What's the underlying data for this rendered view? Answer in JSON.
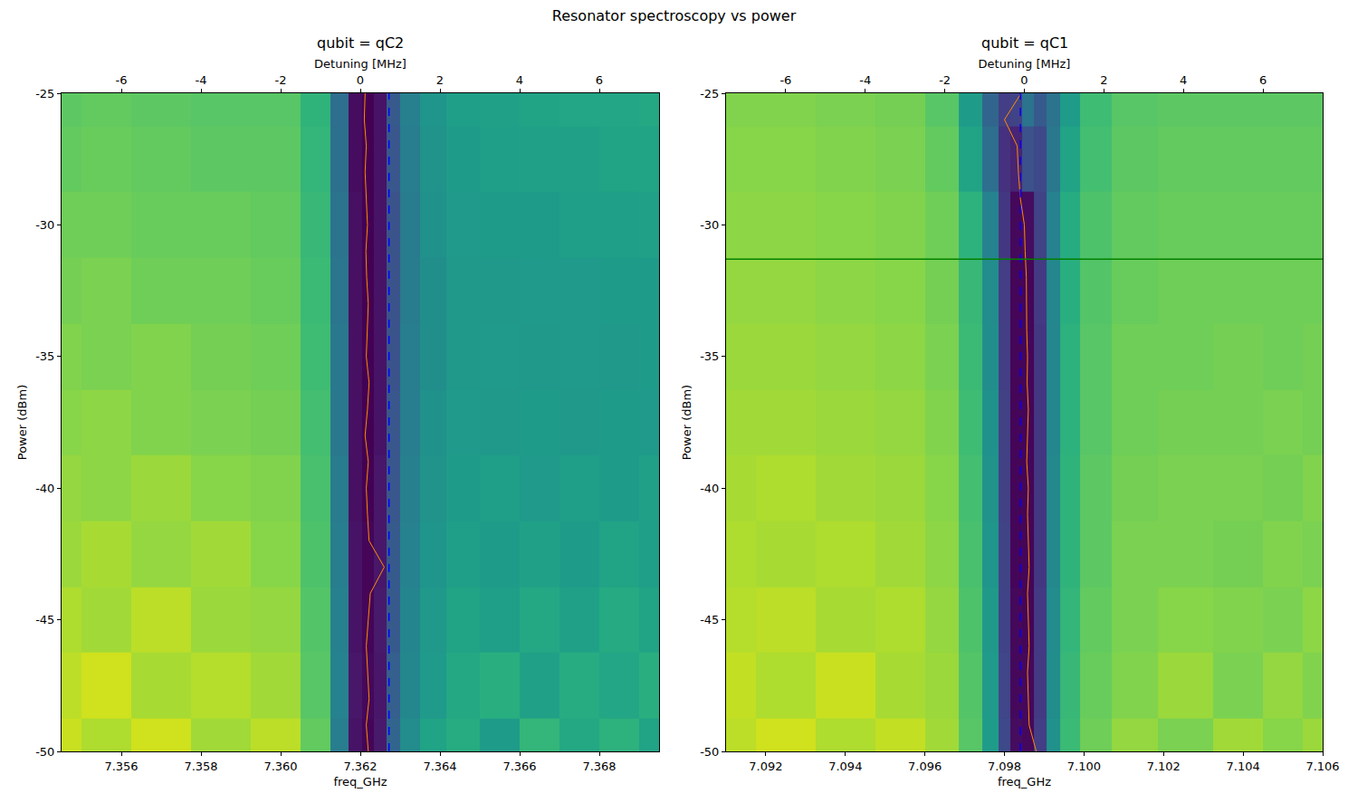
{
  "title": "Resonator spectroscopy vs power",
  "chart_data": [
    {
      "type": "heatmap",
      "title": "qubit = qC2",
      "xlabel": "freq_GHz",
      "ylabel": "Power (dBm)",
      "x2label": "Detuning [MHz]",
      "xlim": [
        7.3545,
        7.3695
      ],
      "ylim": [
        -50,
        -25
      ],
      "x2lim": [
        -7.5,
        7.5
      ],
      "zlim": [
        0,
        1
      ],
      "xticks": [
        7.356,
        7.358,
        {
          "value": 7.36,
          "label": "7.360"
        },
        7.362,
        7.364,
        7.366,
        7.368
      ],
      "yticks": [
        -50,
        -45,
        -40,
        -35,
        -30,
        -25
      ],
      "x2ticks": [
        -6,
        -4,
        -2,
        0,
        2,
        4,
        6
      ],
      "x": [
        7.3545,
        7.3555,
        7.357,
        7.3585,
        7.36,
        7.361,
        7.3615,
        7.3619,
        7.3622,
        7.3625,
        7.3628,
        7.3632,
        7.3638,
        7.3645,
        7.3655,
        7.3665,
        7.3675,
        7.3685,
        7.3695
      ],
      "y": [
        -50,
        -47.5,
        -45,
        -42.5,
        -40,
        -37.5,
        -35,
        -32.5,
        -30,
        -27.5,
        -25
      ],
      "z": [
        [
          0.92,
          0.88,
          0.93,
          0.86,
          0.9,
          0.76,
          0.42,
          0.05,
          0.01,
          0.07,
          0.32,
          0.48,
          0.58,
          0.62,
          0.55,
          0.66,
          0.6,
          0.64,
          0.58
        ],
        [
          0.9,
          0.93,
          0.87,
          0.89,
          0.86,
          0.74,
          0.44,
          0.06,
          0.02,
          0.06,
          0.3,
          0.46,
          0.54,
          0.6,
          0.63,
          0.57,
          0.62,
          0.59,
          0.63
        ],
        [
          0.88,
          0.86,
          0.9,
          0.85,
          0.84,
          0.73,
          0.43,
          0.05,
          0.01,
          0.07,
          0.28,
          0.45,
          0.53,
          0.58,
          0.56,
          0.6,
          0.57,
          0.61,
          0.58
        ],
        [
          0.85,
          0.87,
          0.84,
          0.86,
          0.82,
          0.72,
          0.42,
          0.05,
          0.01,
          0.06,
          0.28,
          0.44,
          0.52,
          0.56,
          0.55,
          0.57,
          0.55,
          0.58,
          0.56
        ],
        [
          0.84,
          0.83,
          0.85,
          0.82,
          0.81,
          0.71,
          0.41,
          0.04,
          0.0,
          0.06,
          0.27,
          0.43,
          0.51,
          0.55,
          0.56,
          0.54,
          0.56,
          0.55,
          0.57
        ],
        [
          0.82,
          0.83,
          0.81,
          0.8,
          0.79,
          0.7,
          0.4,
          0.04,
          0.0,
          0.05,
          0.27,
          0.42,
          0.5,
          0.54,
          0.53,
          0.55,
          0.53,
          0.55,
          0.54
        ],
        [
          0.81,
          0.8,
          0.81,
          0.79,
          0.78,
          0.69,
          0.4,
          0.04,
          0.0,
          0.05,
          0.26,
          0.42,
          0.49,
          0.53,
          0.54,
          0.53,
          0.54,
          0.53,
          0.55
        ],
        [
          0.79,
          0.8,
          0.78,
          0.78,
          0.77,
          0.68,
          0.39,
          0.04,
          0.0,
          0.05,
          0.26,
          0.41,
          0.49,
          0.53,
          0.53,
          0.54,
          0.54,
          0.55,
          0.55
        ],
        [
          0.78,
          0.78,
          0.77,
          0.77,
          0.76,
          0.67,
          0.38,
          0.04,
          0.0,
          0.05,
          0.26,
          0.41,
          0.5,
          0.54,
          0.55,
          0.55,
          0.56,
          0.56,
          0.57
        ],
        [
          0.76,
          0.77,
          0.76,
          0.75,
          0.75,
          0.66,
          0.37,
          0.03,
          0.0,
          0.05,
          0.27,
          0.42,
          0.51,
          0.55,
          0.56,
          0.57,
          0.57,
          0.58,
          0.58
        ],
        [
          0.75,
          0.76,
          0.75,
          0.74,
          0.74,
          0.65,
          0.36,
          0.03,
          0.0,
          0.05,
          0.28,
          0.43,
          0.52,
          0.56,
          0.57,
          0.58,
          0.59,
          0.59,
          0.6
        ]
      ],
      "fit": {
        "color": "#ff8c00",
        "y": [
          -50,
          -49,
          -48,
          -47,
          -46,
          -45,
          -44,
          -43,
          -42,
          -41,
          -40,
          -39,
          -38,
          -37,
          -36,
          -35,
          -34,
          -33,
          -32,
          -31,
          -30,
          -29,
          -28,
          -27,
          -26,
          -25
        ],
        "x": [
          7.3622,
          7.36215,
          7.36222,
          7.36218,
          7.36215,
          7.3622,
          7.36225,
          7.3626,
          7.36222,
          7.36218,
          7.36215,
          7.3622,
          7.36212,
          7.36218,
          7.36222,
          7.36215,
          7.36218,
          7.3622,
          7.36216,
          7.36214,
          7.36218,
          7.36215,
          7.36212,
          7.36215,
          7.3621,
          7.36212
        ]
      },
      "resonator_freq": {
        "value": 7.36272,
        "color": "#0000ff",
        "line_style": "dashed"
      }
    },
    {
      "type": "heatmap",
      "title": "qubit = qC1",
      "xlabel": "freq_GHz",
      "ylabel": "Power (dBm)",
      "x2label": "Detuning [MHz]",
      "xlim": [
        7.091,
        7.106
      ],
      "ylim": [
        -50,
        -25
      ],
      "x2lim": [
        -7.5,
        7.5
      ],
      "zlim": [
        0,
        1
      ],
      "xticks": [
        7.092,
        7.094,
        7.096,
        7.098,
        {
          "value": 7.1,
          "label": "7.100"
        },
        7.102,
        7.104,
        7.106
      ],
      "yticks": [
        -50,
        -45,
        -40,
        -35,
        -30,
        -25
      ],
      "x2ticks": [
        -6,
        -4,
        -2,
        0,
        2,
        4,
        6
      ],
      "x": [
        7.091,
        7.0925,
        7.094,
        7.0955,
        7.0965,
        7.0972,
        7.0977,
        7.098,
        7.0983,
        7.0986,
        7.0989,
        7.0992,
        7.0996,
        7.1002,
        7.1012,
        7.1025,
        7.104,
        7.105,
        7.106
      ],
      "y": [
        -50,
        -47.5,
        -45,
        -42.5,
        -40,
        -37.5,
        -35,
        -32.5,
        -30,
        -27.5,
        -25
      ],
      "z": [
        [
          0.9,
          0.93,
          0.88,
          0.91,
          0.86,
          0.74,
          0.55,
          0.22,
          0.03,
          0.02,
          0.18,
          0.5,
          0.68,
          0.78,
          0.84,
          0.8,
          0.86,
          0.82,
          0.85
        ],
        [
          0.91,
          0.88,
          0.92,
          0.87,
          0.85,
          0.73,
          0.54,
          0.21,
          0.02,
          0.02,
          0.17,
          0.49,
          0.67,
          0.77,
          0.81,
          0.85,
          0.8,
          0.84,
          0.81
        ],
        [
          0.89,
          0.9,
          0.87,
          0.88,
          0.84,
          0.72,
          0.53,
          0.2,
          0.02,
          0.01,
          0.17,
          0.48,
          0.66,
          0.76,
          0.8,
          0.82,
          0.81,
          0.8,
          0.83
        ],
        [
          0.88,
          0.87,
          0.88,
          0.86,
          0.83,
          0.71,
          0.52,
          0.2,
          0.01,
          0.01,
          0.16,
          0.47,
          0.65,
          0.75,
          0.8,
          0.8,
          0.79,
          0.81,
          0.8
        ],
        [
          0.87,
          0.88,
          0.86,
          0.85,
          0.82,
          0.7,
          0.51,
          0.19,
          0.01,
          0.01,
          0.16,
          0.47,
          0.65,
          0.75,
          0.79,
          0.8,
          0.8,
          0.79,
          0.81
        ],
        [
          0.86,
          0.86,
          0.85,
          0.84,
          0.81,
          0.69,
          0.5,
          0.19,
          0.01,
          0.01,
          0.16,
          0.46,
          0.64,
          0.74,
          0.78,
          0.79,
          0.79,
          0.8,
          0.79
        ],
        [
          0.85,
          0.85,
          0.84,
          0.83,
          0.8,
          0.68,
          0.49,
          0.18,
          0.01,
          0.01,
          0.16,
          0.46,
          0.64,
          0.74,
          0.78,
          0.78,
          0.79,
          0.78,
          0.79
        ],
        [
          0.84,
          0.84,
          0.83,
          0.82,
          0.79,
          0.67,
          0.48,
          0.18,
          0.01,
          0.01,
          0.17,
          0.46,
          0.63,
          0.73,
          0.77,
          0.78,
          0.78,
          0.78,
          0.78
        ],
        [
          0.83,
          0.83,
          0.82,
          0.81,
          0.78,
          0.64,
          0.44,
          0.16,
          0.02,
          0.03,
          0.2,
          0.44,
          0.62,
          0.72,
          0.76,
          0.77,
          0.77,
          0.77,
          0.77
        ],
        [
          0.82,
          0.82,
          0.81,
          0.8,
          0.76,
          0.58,
          0.36,
          0.14,
          0.1,
          0.25,
          0.22,
          0.4,
          0.58,
          0.7,
          0.75,
          0.76,
          0.76,
          0.76,
          0.76
        ],
        [
          0.81,
          0.81,
          0.8,
          0.79,
          0.74,
          0.55,
          0.32,
          0.18,
          0.2,
          0.38,
          0.28,
          0.38,
          0.55,
          0.69,
          0.74,
          0.75,
          0.75,
          0.75,
          0.75
        ]
      ],
      "fit": {
        "color": "#ff8c00",
        "y": [
          -50,
          -49,
          -48,
          -47,
          -46,
          -45,
          -44,
          -43,
          -42,
          -41,
          -40,
          -39,
          -38,
          -37,
          -36,
          -35,
          -34,
          -33,
          -32,
          -31,
          -30,
          -29,
          -28,
          -27,
          -26,
          -25
        ],
        "x": [
          7.0988,
          7.09862,
          7.0986,
          7.09858,
          7.09862,
          7.0986,
          7.09858,
          7.09862,
          7.0986,
          7.09858,
          7.0986,
          7.09856,
          7.09858,
          7.0986,
          7.09857,
          7.09858,
          7.09856,
          7.09855,
          7.09855,
          7.09852,
          7.0985,
          7.0984,
          7.09835,
          7.09832,
          7.098,
          7.09842
        ]
      },
      "resonator_freq": {
        "value": 7.0984,
        "color": "#0000ff",
        "line_style": "dashed"
      },
      "selected_power": {
        "value": -31.3,
        "color": "#008000"
      }
    }
  ]
}
